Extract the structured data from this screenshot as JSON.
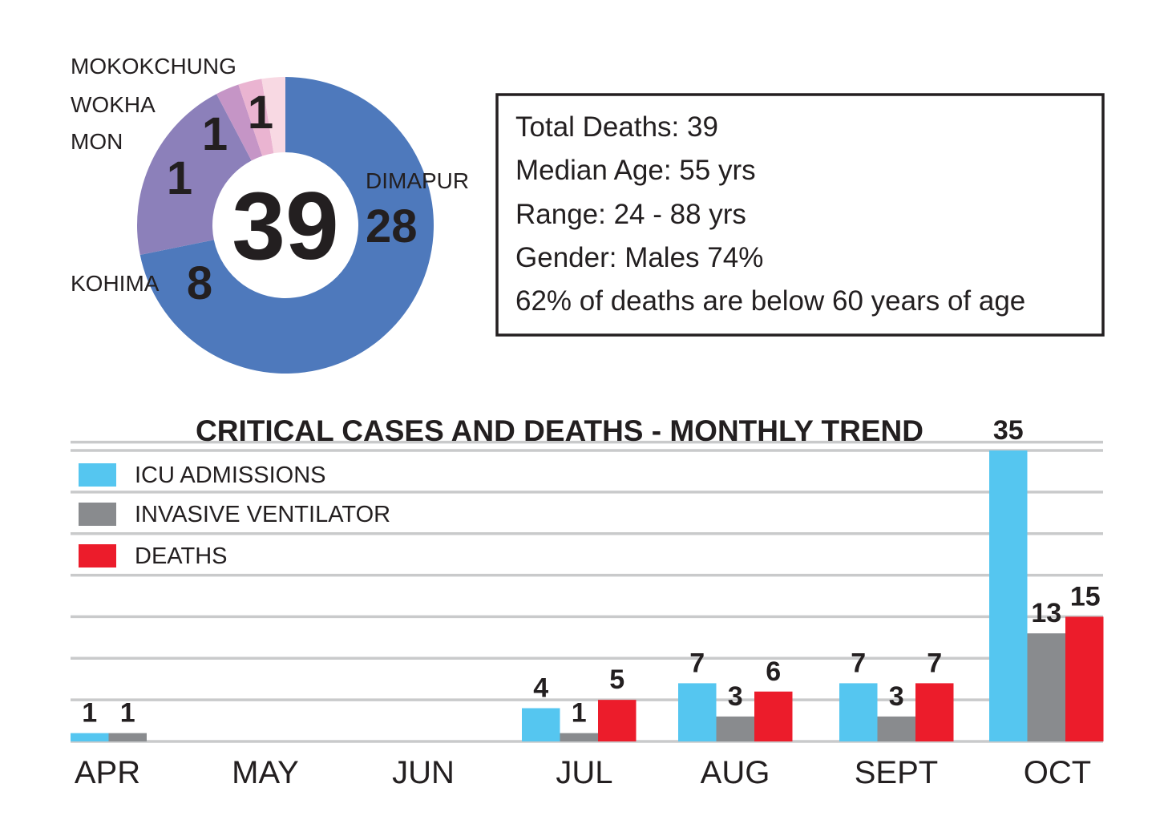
{
  "chart_data": [
    {
      "type": "pie",
      "center_label": "39",
      "slices": [
        {
          "label": "DIMAPUR",
          "value": 28,
          "value_label": "28",
          "color": "#4e79bc"
        },
        {
          "label": "KOHIMA",
          "value": 8,
          "value_label": "8",
          "color": "#8c80ba"
        },
        {
          "label": "MON",
          "value": 1,
          "value_label": "1",
          "color": "#c595c6"
        },
        {
          "label": "WOKHA",
          "value": 1,
          "value_label": "1",
          "color": "#eab4d1"
        },
        {
          "label": "MOKOKCHUNG",
          "value": 1,
          "value_label": "1",
          "color": "#f8d9e3"
        }
      ]
    },
    {
      "type": "bar",
      "title": "CRITICAL CASES AND DEATHS - MONTHLY TREND",
      "categories": [
        "APR",
        "MAY",
        "JUN",
        "JUL",
        "AUG",
        "SEPT",
        "OCT"
      ],
      "ylim": [
        0,
        35
      ],
      "grid": true,
      "legend_position": "top-left",
      "series": [
        {
          "name": "ICU ADMISSIONS",
          "color": "#55c6f0",
          "values": [
            1,
            0,
            0,
            4,
            7,
            7,
            35
          ]
        },
        {
          "name": "INVASIVE VENTILATOR",
          "color": "#898b8e",
          "values": [
            1,
            0,
            0,
            1,
            3,
            3,
            13
          ]
        },
        {
          "name": "DEATHS",
          "color": "#ec1c2b",
          "values": [
            0,
            0,
            0,
            5,
            6,
            7,
            15
          ]
        }
      ]
    }
  ],
  "summary": {
    "lines": [
      "Total Deaths: 39",
      "Median Age: 55 yrs",
      "Range: 24 - 88 yrs",
      "Gender: Males 74%",
      "62% of deaths are below 60 years of age"
    ]
  }
}
